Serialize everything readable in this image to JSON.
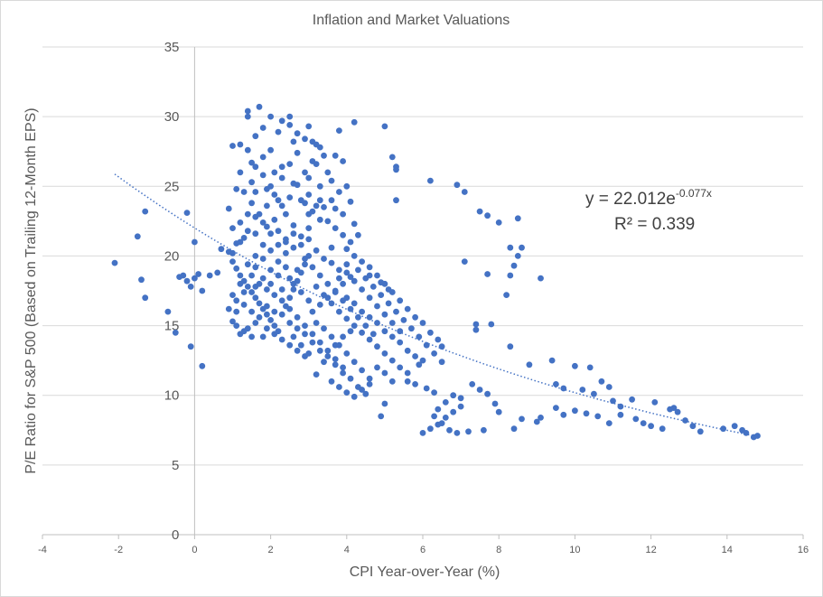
{
  "chart_data": {
    "type": "scatter",
    "title": "Inflation and Market Valuations",
    "xlabel": "CPI Year-over-Year  (%)",
    "ylabel": "P/E Ratio for S&P 500 (Based on Trailing 12-Month EPS)",
    "xlim": [
      -4,
      16
    ],
    "ylim": [
      0,
      35
    ],
    "x_ticks": [
      -4,
      -2,
      0,
      2,
      4,
      6,
      8,
      10,
      12,
      14,
      16
    ],
    "y_ticks": [
      0,
      5,
      10,
      15,
      20,
      25,
      30,
      35
    ],
    "x_tick_labels": [
      "-4",
      "-2",
      "0",
      "2",
      "4",
      "6",
      "8",
      "10",
      "12",
      "14",
      "16"
    ],
    "y_tick_labels": [
      "0",
      "5",
      "10",
      "15",
      "20",
      "25",
      "30",
      "35"
    ],
    "grid": "horizontal",
    "point_color": "#4472c4",
    "trendline": {
      "type": "exponential",
      "a": 22.012,
      "b": -0.077,
      "x_range": [
        -2.1,
        14.8
      ],
      "color": "#4472c4",
      "equation_prefix": "y = 22.012e",
      "equation_exponent": "-0.077x",
      "r_squared": "R² = 0.339"
    },
    "points": [
      [
        -2.1,
        19.5
      ],
      [
        -1.5,
        21.4
      ],
      [
        -1.3,
        23.2
      ],
      [
        -1.4,
        18.3
      ],
      [
        -1.3,
        17.0
      ],
      [
        -0.7,
        16.0
      ],
      [
        -0.5,
        14.5
      ],
      [
        -0.3,
        18.6
      ],
      [
        -0.2,
        18.2
      ],
      [
        -0.1,
        17.8
      ],
      [
        0.0,
        18.4
      ],
      [
        0.1,
        18.7
      ],
      [
        0.2,
        17.5
      ],
      [
        -0.2,
        23.1
      ],
      [
        0.0,
        21.0
      ],
      [
        -0.1,
        13.5
      ],
      [
        0.2,
        12.1
      ],
      [
        -0.4,
        18.5
      ],
      [
        0.4,
        18.6
      ],
      [
        0.6,
        18.8
      ],
      [
        0.7,
        20.5
      ],
      [
        0.9,
        20.3
      ],
      [
        0.9,
        23.4
      ],
      [
        1.1,
        24.8
      ],
      [
        1.2,
        28.0
      ],
      [
        1.4,
        30.4
      ],
      [
        1.4,
        30.0
      ],
      [
        1.7,
        30.7
      ],
      [
        1.8,
        29.2
      ],
      [
        1.5,
        26.7
      ],
      [
        1.5,
        25.3
      ],
      [
        1.8,
        27.1
      ],
      [
        2.0,
        30.0
      ],
      [
        2.2,
        28.9
      ],
      [
        2.3,
        29.7
      ],
      [
        2.5,
        29.4
      ],
      [
        2.7,
        28.8
      ],
      [
        2.9,
        28.4
      ],
      [
        3.1,
        28.2
      ],
      [
        3.3,
        27.8
      ],
      [
        3.2,
        26.6
      ],
      [
        3.0,
        25.6
      ],
      [
        2.7,
        25.1
      ],
      [
        2.5,
        24.2
      ],
      [
        2.3,
        23.6
      ],
      [
        2.1,
        22.6
      ],
      [
        1.9,
        22.1
      ],
      [
        1.6,
        21.6
      ],
      [
        1.3,
        21.3
      ],
      [
        1.1,
        20.9
      ],
      [
        1.0,
        20.2
      ],
      [
        1.0,
        19.6
      ],
      [
        1.1,
        19.1
      ],
      [
        1.2,
        18.6
      ],
      [
        1.3,
        18.2
      ],
      [
        1.4,
        17.8
      ],
      [
        1.5,
        17.4
      ],
      [
        1.6,
        17.0
      ],
      [
        1.7,
        16.6
      ],
      [
        1.8,
        16.2
      ],
      [
        1.9,
        15.8
      ],
      [
        2.0,
        15.4
      ],
      [
        2.1,
        15.0
      ],
      [
        2.2,
        14.6
      ],
      [
        1.1,
        15.0
      ],
      [
        1.2,
        14.4
      ],
      [
        1.4,
        14.8
      ],
      [
        1.6,
        15.2
      ],
      [
        1.8,
        14.2
      ],
      [
        2.3,
        15.8
      ],
      [
        2.4,
        16.4
      ],
      [
        2.5,
        17.0
      ],
      [
        2.6,
        17.6
      ],
      [
        2.7,
        18.2
      ],
      [
        2.8,
        18.8
      ],
      [
        2.9,
        19.4
      ],
      [
        3.0,
        20.0
      ],
      [
        2.6,
        20.6
      ],
      [
        2.4,
        21.2
      ],
      [
        2.2,
        21.8
      ],
      [
        2.0,
        20.4
      ],
      [
        1.8,
        19.8
      ],
      [
        1.6,
        19.2
      ],
      [
        1.5,
        18.6
      ],
      [
        1.7,
        18.0
      ],
      [
        1.9,
        17.6
      ],
      [
        2.1,
        17.2
      ],
      [
        2.3,
        16.8
      ],
      [
        2.5,
        16.2
      ],
      [
        2.7,
        15.6
      ],
      [
        2.9,
        15.0
      ],
      [
        3.1,
        14.4
      ],
      [
        3.3,
        13.8
      ],
      [
        3.5,
        13.2
      ],
      [
        3.7,
        12.6
      ],
      [
        3.9,
        12.0
      ],
      [
        3.2,
        11.5
      ],
      [
        3.6,
        11.0
      ],
      [
        3.8,
        10.6
      ],
      [
        4.0,
        10.2
      ],
      [
        4.2,
        9.9
      ],
      [
        4.4,
        10.4
      ],
      [
        4.6,
        10.8
      ],
      [
        3.4,
        12.4
      ],
      [
        3.0,
        13.0
      ],
      [
        2.8,
        13.6
      ],
      [
        2.6,
        14.2
      ],
      [
        3.1,
        16.0
      ],
      [
        3.3,
        16.5
      ],
      [
        3.5,
        17.0
      ],
      [
        3.7,
        17.5
      ],
      [
        3.9,
        18.0
      ],
      [
        4.1,
        18.5
      ],
      [
        4.3,
        19.0
      ],
      [
        4.5,
        18.4
      ],
      [
        4.7,
        17.8
      ],
      [
        4.9,
        17.2
      ],
      [
        5.1,
        16.6
      ],
      [
        5.3,
        16.0
      ],
      [
        5.5,
        15.4
      ],
      [
        5.7,
        14.8
      ],
      [
        5.9,
        14.2
      ],
      [
        6.1,
        13.6
      ],
      [
        6.3,
        13.0
      ],
      [
        6.5,
        12.4
      ],
      [
        4.0,
        15.5
      ],
      [
        4.2,
        15.0
      ],
      [
        4.4,
        14.5
      ],
      [
        4.6,
        14.0
      ],
      [
        4.8,
        13.5
      ],
      [
        5.0,
        13.0
      ],
      [
        5.2,
        12.5
      ],
      [
        5.4,
        12.0
      ],
      [
        5.6,
        11.6
      ],
      [
        3.6,
        19.5
      ],
      [
        3.8,
        19.0
      ],
      [
        4.0,
        18.8
      ],
      [
        4.2,
        18.2
      ],
      [
        4.4,
        17.6
      ],
      [
        4.6,
        17.0
      ],
      [
        4.8,
        16.4
      ],
      [
        5.0,
        15.8
      ],
      [
        5.2,
        15.2
      ],
      [
        5.4,
        14.6
      ],
      [
        3.5,
        22.5
      ],
      [
        3.7,
        22.0
      ],
      [
        3.9,
        21.5
      ],
      [
        4.1,
        21.0
      ],
      [
        3.4,
        23.5
      ],
      [
        3.6,
        24.0
      ],
      [
        3.8,
        24.6
      ],
      [
        3.3,
        25.0
      ],
      [
        3.0,
        24.4
      ],
      [
        2.9,
        23.8
      ],
      [
        3.1,
        23.2
      ],
      [
        3.3,
        22.6
      ],
      [
        3.0,
        22.0
      ],
      [
        2.8,
        21.4
      ],
      [
        2.6,
        22.2
      ],
      [
        2.4,
        23.0
      ],
      [
        2.2,
        24.0
      ],
      [
        2.0,
        25.0
      ],
      [
        1.8,
        25.8
      ],
      [
        1.6,
        26.4
      ],
      [
        1.4,
        27.6
      ],
      [
        1.2,
        26.0
      ],
      [
        1.3,
        24.6
      ],
      [
        1.5,
        23.8
      ],
      [
        1.7,
        23.0
      ],
      [
        1.9,
        23.6
      ],
      [
        2.1,
        24.4
      ],
      [
        2.3,
        25.6
      ],
      [
        2.5,
        26.6
      ],
      [
        2.7,
        27.4
      ],
      [
        2.9,
        26.0
      ],
      [
        3.1,
        26.8
      ],
      [
        3.4,
        27.2
      ],
      [
        3.8,
        29.0
      ],
      [
        4.2,
        29.6
      ],
      [
        5.0,
        29.3
      ],
      [
        5.2,
        27.1
      ],
      [
        5.3,
        26.4
      ],
      [
        5.3,
        26.2
      ],
      [
        5.3,
        24.0
      ],
      [
        6.2,
        25.4
      ],
      [
        6.9,
        25.1
      ],
      [
        7.1,
        24.6
      ],
      [
        7.5,
        23.2
      ],
      [
        7.7,
        22.9
      ],
      [
        8.0,
        22.4
      ],
      [
        8.5,
        22.7
      ],
      [
        8.3,
        20.6
      ],
      [
        8.6,
        20.6
      ],
      [
        8.5,
        20.0
      ],
      [
        8.4,
        19.3
      ],
      [
        8.3,
        18.6
      ],
      [
        9.1,
        18.4
      ],
      [
        7.1,
        19.6
      ],
      [
        7.7,
        18.7
      ],
      [
        8.2,
        17.2
      ],
      [
        7.4,
        15.1
      ],
      [
        7.8,
        15.1
      ],
      [
        7.4,
        14.7
      ],
      [
        8.3,
        13.5
      ],
      [
        8.8,
        12.2
      ],
      [
        9.4,
        12.5
      ],
      [
        10.0,
        12.1
      ],
      [
        10.4,
        12.0
      ],
      [
        10.7,
        11.0
      ],
      [
        9.5,
        10.8
      ],
      [
        9.7,
        10.5
      ],
      [
        10.2,
        10.4
      ],
      [
        10.5,
        10.1
      ],
      [
        10.9,
        10.6
      ],
      [
        11.0,
        9.6
      ],
      [
        11.2,
        9.2
      ],
      [
        11.5,
        9.7
      ],
      [
        12.1,
        9.5
      ],
      [
        12.5,
        9.0
      ],
      [
        12.6,
        9.1
      ],
      [
        12.7,
        8.8
      ],
      [
        12.9,
        8.2
      ],
      [
        13.1,
        7.8
      ],
      [
        13.3,
        7.4
      ],
      [
        13.9,
        7.6
      ],
      [
        14.2,
        7.8
      ],
      [
        14.4,
        7.5
      ],
      [
        14.5,
        7.3
      ],
      [
        14.7,
        7.0
      ],
      [
        14.8,
        7.1
      ],
      [
        12.3,
        7.6
      ],
      [
        12.0,
        7.8
      ],
      [
        11.8,
        8.0
      ],
      [
        11.6,
        8.3
      ],
      [
        11.2,
        8.6
      ],
      [
        10.9,
        8.0
      ],
      [
        10.6,
        8.5
      ],
      [
        10.3,
        8.7
      ],
      [
        10.0,
        8.9
      ],
      [
        9.7,
        8.6
      ],
      [
        9.5,
        9.1
      ],
      [
        9.1,
        8.4
      ],
      [
        9.0,
        8.1
      ],
      [
        8.6,
        8.3
      ],
      [
        8.4,
        7.6
      ],
      [
        8.0,
        8.8
      ],
      [
        7.9,
        9.4
      ],
      [
        7.7,
        10.1
      ],
      [
        7.5,
        10.4
      ],
      [
        7.3,
        10.8
      ],
      [
        7.0,
        9.8
      ],
      [
        6.8,
        10.0
      ],
      [
        6.6,
        9.5
      ],
      [
        6.4,
        9.0
      ],
      [
        6.3,
        8.5
      ],
      [
        6.5,
        8.0
      ],
      [
        6.7,
        7.5
      ],
      [
        6.9,
        7.3
      ],
      [
        7.2,
        7.4
      ],
      [
        7.6,
        7.5
      ],
      [
        6.0,
        7.3
      ],
      [
        6.2,
        7.6
      ],
      [
        6.4,
        7.9
      ],
      [
        6.6,
        8.4
      ],
      [
        6.8,
        8.8
      ],
      [
        7.0,
        9.2
      ],
      [
        6.3,
        10.2
      ],
      [
        6.1,
        10.5
      ],
      [
        5.8,
        10.8
      ],
      [
        5.6,
        11.0
      ],
      [
        5.9,
        12.2
      ],
      [
        6.0,
        12.5
      ],
      [
        6.2,
        14.5
      ],
      [
        6.4,
        14.0
      ],
      [
        6.5,
        13.5
      ],
      [
        5.0,
        9.4
      ],
      [
        4.9,
        8.5
      ],
      [
        4.5,
        10.1
      ],
      [
        4.3,
        10.6
      ],
      [
        4.1,
        11.2
      ],
      [
        3.9,
        11.6
      ],
      [
        3.7,
        12.2
      ],
      [
        1.0,
        15.3
      ],
      [
        1.1,
        16.0
      ],
      [
        1.3,
        16.5
      ],
      [
        1.5,
        16.0
      ],
      [
        1.7,
        15.6
      ],
      [
        1.9,
        16.4
      ],
      [
        2.1,
        16.0
      ],
      [
        2.3,
        17.6
      ],
      [
        2.5,
        18.4
      ],
      [
        2.7,
        19.0
      ],
      [
        2.9,
        19.8
      ],
      [
        3.1,
        19.2
      ],
      [
        3.3,
        18.6
      ],
      [
        3.5,
        18.0
      ],
      [
        3.7,
        17.4
      ],
      [
        3.9,
        16.8
      ],
      [
        4.1,
        16.2
      ],
      [
        4.3,
        15.6
      ],
      [
        4.5,
        15.0
      ],
      [
        4.7,
        14.4
      ],
      [
        2.0,
        19.0
      ],
      [
        2.2,
        19.6
      ],
      [
        2.4,
        20.2
      ],
      [
        1.8,
        20.8
      ],
      [
        1.6,
        20.0
      ],
      [
        1.4,
        19.4
      ],
      [
        1.2,
        18.0
      ],
      [
        1.0,
        17.2
      ],
      [
        1.1,
        16.8
      ],
      [
        1.3,
        17.4
      ],
      [
        0.9,
        16.2
      ],
      [
        2.6,
        21.6
      ],
      [
        2.8,
        20.8
      ],
      [
        3.0,
        21.2
      ],
      [
        3.2,
        20.4
      ],
      [
        3.4,
        19.8
      ],
      [
        3.6,
        20.6
      ],
      [
        3.8,
        18.4
      ],
      [
        4.0,
        17.0
      ],
      [
        4.2,
        16.6
      ],
      [
        4.4,
        16.0
      ],
      [
        4.6,
        15.6
      ],
      [
        4.8,
        15.2
      ],
      [
        5.0,
        14.6
      ],
      [
        5.2,
        14.2
      ],
      [
        5.4,
        13.8
      ],
      [
        5.6,
        13.2
      ],
      [
        5.8,
        12.8
      ],
      [
        6.0,
        15.2
      ],
      [
        5.8,
        15.6
      ],
      [
        5.6,
        16.2
      ],
      [
        5.4,
        16.8
      ],
      [
        5.2,
        17.4
      ],
      [
        5.0,
        18.0
      ],
      [
        4.8,
        18.6
      ],
      [
        4.6,
        19.2
      ],
      [
        4.4,
        19.6
      ],
      [
        4.2,
        20.0
      ],
      [
        2.5,
        15.2
      ],
      [
        2.7,
        14.8
      ],
      [
        2.9,
        14.4
      ],
      [
        3.1,
        13.8
      ],
      [
        3.3,
        13.2
      ],
      [
        3.5,
        12.8
      ],
      [
        3.7,
        13.6
      ],
      [
        3.9,
        14.2
      ],
      [
        4.1,
        14.6
      ],
      [
        1.9,
        14.8
      ],
      [
        2.1,
        14.4
      ],
      [
        2.3,
        14.0
      ],
      [
        2.5,
        13.6
      ],
      [
        2.7,
        13.2
      ],
      [
        2.9,
        12.8
      ],
      [
        1.5,
        14.2
      ],
      [
        1.3,
        14.6
      ],
      [
        1.6,
        17.8
      ],
      [
        1.8,
        18.4
      ],
      [
        2.0,
        18.0
      ],
      [
        2.2,
        18.6
      ],
      [
        2.4,
        19.2
      ],
      [
        2.6,
        18.0
      ],
      [
        2.8,
        17.4
      ],
      [
        3.0,
        16.8
      ],
      [
        3.2,
        17.8
      ],
      [
        3.4,
        17.2
      ],
      [
        3.6,
        16.6
      ],
      [
        3.8,
        16.0
      ],
      [
        4.0,
        19.4
      ],
      [
        3.2,
        15.2
      ],
      [
        3.4,
        14.8
      ],
      [
        3.6,
        14.2
      ],
      [
        3.8,
        13.6
      ],
      [
        4.0,
        13.0
      ],
      [
        4.2,
        12.4
      ],
      [
        4.4,
        11.8
      ],
      [
        4.6,
        11.2
      ],
      [
        4.8,
        12.0
      ],
      [
        5.0,
        11.6
      ],
      [
        5.2,
        11.0
      ],
      [
        4.0,
        25.0
      ],
      [
        3.9,
        23.0
      ],
      [
        3.7,
        23.4
      ],
      [
        2.0,
        27.6
      ],
      [
        2.6,
        28.2
      ],
      [
        3.2,
        28.0
      ],
      [
        1.0,
        22.0
      ],
      [
        1.2,
        22.4
      ],
      [
        1.4,
        23.0
      ],
      [
        1.6,
        24.6
      ],
      [
        1.9,
        24.8
      ],
      [
        2.1,
        26.0
      ],
      [
        2.3,
        26.4
      ],
      [
        2.6,
        25.2
      ],
      [
        2.8,
        24.0
      ],
      [
        3.0,
        23.0
      ],
      [
        2.4,
        21.0
      ],
      [
        2.2,
        20.8
      ],
      [
        2.0,
        21.6
      ],
      [
        1.8,
        22.4
      ],
      [
        1.6,
        22.8
      ],
      [
        1.4,
        21.8
      ],
      [
        1.2,
        21.0
      ],
      [
        3.9,
        26.8
      ],
      [
        3.7,
        27.2
      ],
      [
        3.5,
        26.0
      ],
      [
        3.3,
        24.0
      ],
      [
        3.2,
        23.6
      ],
      [
        3.6,
        25.4
      ],
      [
        1.0,
        27.9
      ],
      [
        1.6,
        28.6
      ],
      [
        2.5,
        30.0
      ],
      [
        3.0,
        29.3
      ],
      [
        4.0,
        20.5
      ],
      [
        4.2,
        22.3
      ],
      [
        4.1,
        23.9
      ],
      [
        4.3,
        21.5
      ],
      [
        4.6,
        18.6
      ],
      [
        4.9,
        18.1
      ],
      [
        5.1,
        17.6
      ]
    ]
  }
}
